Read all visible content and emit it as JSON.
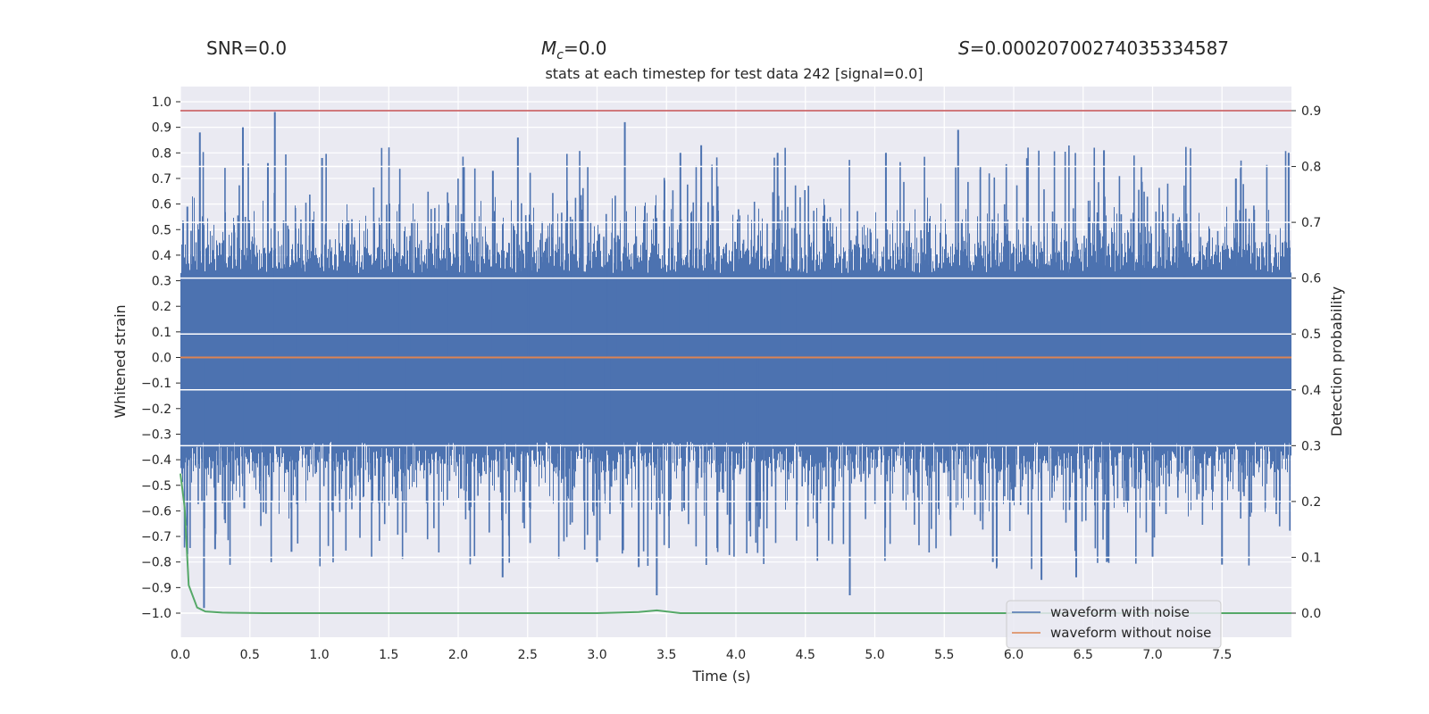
{
  "stats": {
    "snr_label": "SNR=0.0",
    "mc_symbol": "M",
    "mc_subscript": "c",
    "mc_value": "=0.0",
    "s_symbol": "S",
    "s_value": "=0.00020700274035334587"
  },
  "chart_data": {
    "type": "line",
    "title": "stats at each timestep for test data 242 [signal=0.0]",
    "xlabel": "Time (s)",
    "ylabel_left": "Whitened strain",
    "ylabel_right": "Detection probability",
    "xlim": [
      0.0,
      8.0
    ],
    "ylim_left": [
      -1.0,
      1.0
    ],
    "ylim_right": [
      0.0,
      0.9
    ],
    "x_ticks": [
      "0.0",
      "0.5",
      "1.0",
      "1.5",
      "2.0",
      "2.5",
      "3.0",
      "3.5",
      "4.0",
      "4.5",
      "5.0",
      "5.5",
      "6.0",
      "6.5",
      "7.0",
      "7.5"
    ],
    "y_ticks_left": [
      "1.0",
      "0.9",
      "0.8",
      "0.7",
      "0.6",
      "0.5",
      "0.4",
      "0.3",
      "0.2",
      "0.1",
      "0.0",
      "-0.1",
      "-0.2",
      "-0.3",
      "-0.4",
      "-0.5",
      "-0.6",
      "-0.7",
      "-0.8",
      "-0.9",
      "-1.0"
    ],
    "y_ticks_right": [
      "0.9",
      "0.8",
      "0.7",
      "0.6",
      "0.5",
      "0.4",
      "0.3",
      "0.2",
      "0.1",
      "0.0"
    ],
    "colors": {
      "noise": "#4c72b0",
      "clean": "#dd8452",
      "probability": "#55a868",
      "threshold": "#c44e52",
      "background": "#eaeaf2",
      "grid": "#ffffff"
    },
    "threshold": {
      "value": 0.9,
      "axis": "right"
    },
    "series": [
      {
        "name": "waveform with noise",
        "axis": "left",
        "peaks": [
          {
            "x": 0.05,
            "y": 0.59
          },
          {
            "x": 0.14,
            "y": 0.88
          },
          {
            "x": 0.17,
            "y": -0.98
          },
          {
            "x": 0.25,
            "y": -0.75
          },
          {
            "x": 0.45,
            "y": 0.9
          },
          {
            "x": 0.46,
            "y": -0.59
          },
          {
            "x": 0.63,
            "y": 0.76
          },
          {
            "x": 0.68,
            "y": 0.96
          },
          {
            "x": 0.8,
            "y": -0.76
          },
          {
            "x": 1.02,
            "y": 0.78
          },
          {
            "x": 1.55,
            "y": -0.55
          },
          {
            "x": 2.25,
            "y": 0.73
          },
          {
            "x": 2.32,
            "y": -0.86
          },
          {
            "x": 2.43,
            "y": 0.86
          },
          {
            "x": 3.0,
            "y": -0.8
          },
          {
            "x": 3.2,
            "y": 0.92
          },
          {
            "x": 3.3,
            "y": -0.82
          },
          {
            "x": 3.43,
            "y": -0.93
          },
          {
            "x": 3.6,
            "y": 0.8
          },
          {
            "x": 3.75,
            "y": 0.83
          },
          {
            "x": 4.3,
            "y": 0.8
          },
          {
            "x": 4.82,
            "y": -0.93
          },
          {
            "x": 5.08,
            "y": 0.8
          },
          {
            "x": 5.6,
            "y": 0.89
          },
          {
            "x": 5.85,
            "y": -0.8
          },
          {
            "x": 6.2,
            "y": -0.87
          },
          {
            "x": 6.45,
            "y": -0.86
          },
          {
            "x": 6.65,
            "y": 0.81
          },
          {
            "x": 7.0,
            "y": -0.78
          },
          {
            "x": 7.5,
            "y": -0.81
          },
          {
            "x": 7.6,
            "y": 0.7
          },
          {
            "x": 7.98,
            "y": 0.8
          }
        ]
      },
      {
        "name": "waveform without noise",
        "axis": "left",
        "x": [
          0.0,
          8.0
        ],
        "y": [
          0.0,
          0.0
        ]
      },
      {
        "name": "detection probability",
        "axis": "right",
        "x": [
          0.0,
          0.03,
          0.06,
          0.12,
          0.18,
          0.3,
          0.6,
          1.0,
          2.0,
          3.0,
          3.3,
          3.43,
          3.6,
          4.0,
          5.0,
          6.0,
          7.0,
          8.0
        ],
        "y": [
          0.25,
          0.19,
          0.05,
          0.01,
          0.003,
          0.001,
          0.0,
          0.0,
          0.0,
          0.0,
          0.002,
          0.005,
          0.0,
          0.0,
          0.0,
          0.0,
          0.0,
          0.0
        ]
      }
    ],
    "legend": {
      "position": "lower-right",
      "entries": [
        "waveform with noise",
        "waveform without noise"
      ]
    }
  }
}
